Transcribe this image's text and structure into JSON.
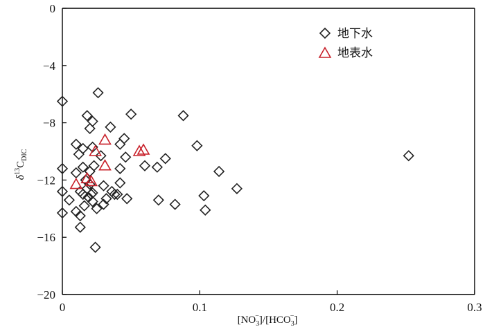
{
  "chart_data": {
    "type": "scatter",
    "xlabel": "[NO3-]/[HCO3-]",
    "ylabel": "δ13C_DIC",
    "xlim": [
      0,
      0.3
    ],
    "ylim": [
      -20,
      0
    ],
    "xticks": [
      0,
      0.1,
      0.2,
      0.3
    ],
    "xtick_labels": [
      "0",
      "0.1",
      "0.2",
      "0.3"
    ],
    "yticks": [
      0,
      -4,
      -8,
      -12,
      -16,
      -20
    ],
    "ytick_labels": [
      "0",
      "−4",
      "−8",
      "−12",
      "−16",
      "−20"
    ],
    "grid": false,
    "legend_position": "top-right",
    "series": [
      {
        "name": "地下水",
        "marker": "diamond",
        "color": "#222222",
        "points": [
          [
            0.0,
            -6.5
          ],
          [
            0.0,
            -11.2
          ],
          [
            0.0,
            -12.8
          ],
          [
            0.0,
            -14.3
          ],
          [
            0.005,
            -13.4
          ],
          [
            0.01,
            -9.5
          ],
          [
            0.01,
            -11.5
          ],
          [
            0.01,
            -14.2
          ],
          [
            0.012,
            -10.2
          ],
          [
            0.013,
            -12.8
          ],
          [
            0.013,
            -14.5
          ],
          [
            0.013,
            -15.3
          ],
          [
            0.015,
            -9.8
          ],
          [
            0.015,
            -11.1
          ],
          [
            0.015,
            -13.0
          ],
          [
            0.016,
            -13.8
          ],
          [
            0.017,
            -12.0
          ],
          [
            0.018,
            -12.6
          ],
          [
            0.019,
            -13.2
          ],
          [
            0.018,
            -7.5
          ],
          [
            0.02,
            -8.4
          ],
          [
            0.02,
            -11.4
          ],
          [
            0.02,
            -12.3
          ],
          [
            0.021,
            -13.0
          ],
          [
            0.022,
            -13.5
          ],
          [
            0.022,
            -7.9
          ],
          [
            0.022,
            -9.7
          ],
          [
            0.022,
            -12.9
          ],
          [
            0.023,
            -11.0
          ],
          [
            0.025,
            -14.0
          ],
          [
            0.024,
            -16.7
          ],
          [
            0.026,
            -5.9
          ],
          [
            0.028,
            -10.3
          ],
          [
            0.03,
            -12.4
          ],
          [
            0.03,
            -13.7
          ],
          [
            0.032,
            -13.3
          ],
          [
            0.035,
            -8.3
          ],
          [
            0.036,
            -12.8
          ],
          [
            0.038,
            -13.0
          ],
          [
            0.04,
            -13.0
          ],
          [
            0.042,
            -11.2
          ],
          [
            0.042,
            -12.2
          ],
          [
            0.042,
            -9.5
          ],
          [
            0.045,
            -9.1
          ],
          [
            0.046,
            -10.4
          ],
          [
            0.047,
            -13.3
          ],
          [
            0.05,
            -7.4
          ],
          [
            0.06,
            -11.0
          ],
          [
            0.069,
            -11.1
          ],
          [
            0.07,
            -13.4
          ],
          [
            0.075,
            -10.5
          ],
          [
            0.082,
            -13.7
          ],
          [
            0.088,
            -7.5
          ],
          [
            0.098,
            -9.6
          ],
          [
            0.103,
            -13.1
          ],
          [
            0.104,
            -14.1
          ],
          [
            0.114,
            -11.4
          ],
          [
            0.127,
            -12.6
          ],
          [
            0.252,
            -10.3
          ]
        ]
      },
      {
        "name": "地表水",
        "marker": "triangle",
        "color": "#c8202a",
        "points": [
          [
            0.01,
            -12.3
          ],
          [
            0.018,
            -11.9
          ],
          [
            0.021,
            -12.1
          ],
          [
            0.024,
            -10.0
          ],
          [
            0.031,
            -9.2
          ],
          [
            0.031,
            -11.0
          ],
          [
            0.056,
            -10.0
          ],
          [
            0.059,
            -9.9
          ]
        ]
      }
    ]
  }
}
